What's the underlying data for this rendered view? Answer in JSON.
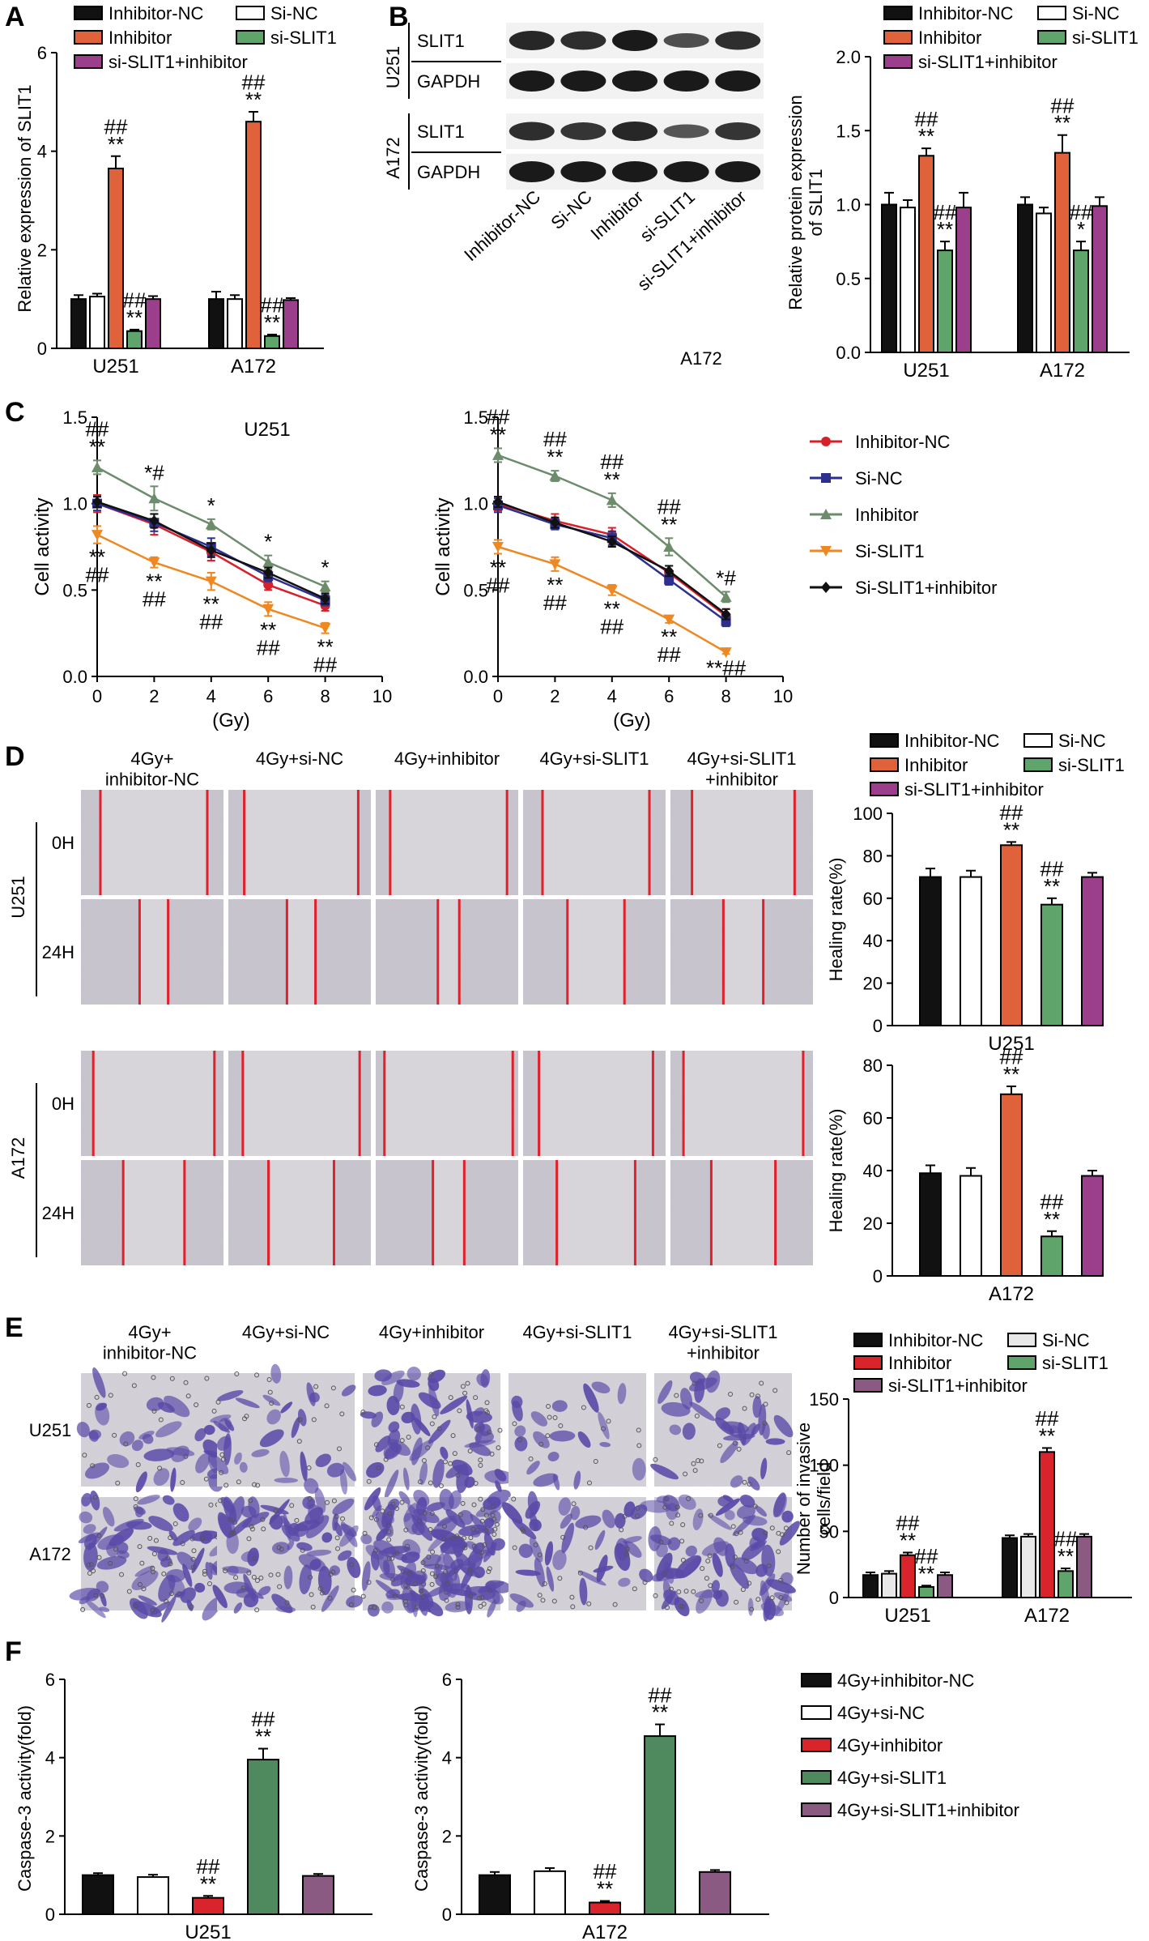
{
  "colors": {
    "black": "#111111",
    "white": "#ffffff",
    "orange": "#e0623a",
    "green": "#5fa46b",
    "purple": "#9b3f8c",
    "red": "#d9242b",
    "seaGreen": "#4f8a5f",
    "mauve": "#8a5a83",
    "lineRed": "#d7202a",
    "lineBlue": "#2d2f8e",
    "lineGray": "#6c8c6c",
    "lineOrange": "#ee8822",
    "lineBlack": "#111111",
    "woundRed": "#e0202a",
    "stain": "#5a4aa8"
  },
  "panel_letters": [
    "A",
    "B",
    "C",
    "D",
    "E",
    "F"
  ],
  "panelA": {
    "ylabel": "Relative expression of  SLIT1",
    "legend": [
      "Inhibitor-NC",
      "Si-NC",
      "Inhibitor",
      "si-SLIT1",
      "si-SLIT1+inhibitor"
    ]
  },
  "panelB": {
    "blot": {
      "lanes": [
        "Inhibitor-NC",
        "Si-NC",
        "Inhibitor",
        "si-SLIT1",
        "si-SLIT1+inhibitor"
      ],
      "groups": [
        {
          "cell": "U251",
          "rows": [
            "SLIT1",
            "GAPDH"
          ]
        },
        {
          "cell": "A172",
          "rows": [
            "SLIT1",
            "GAPDH"
          ]
        }
      ],
      "caption": "A172"
    },
    "ylabel_line1": "Relative protein expression",
    "ylabel_line2": "of  SLIT1",
    "legend": [
      "Inhibitor-NC",
      "Si-NC",
      "Inhibitor",
      "si-SLIT1",
      "si-SLIT1+inhibitor"
    ]
  },
  "panelC": {
    "left_title": "U251",
    "ylabel": "Cell activity",
    "xlabel": "(Gy)",
    "legend": [
      "Inhibitor-NC",
      "Si-NC",
      "Inhibitor",
      "Si-SLIT1",
      "Si-SLIT1+inhibitor"
    ]
  },
  "panelD": {
    "columns": [
      "4Gy+\ninhibitor-NC",
      "4Gy+si-NC",
      "4Gy+inhibitor",
      "4Gy+si-SLIT1",
      "4Gy+si-SLIT1\n+inhibitor"
    ],
    "cells": [
      "U251",
      "A172"
    ],
    "times": [
      "0H",
      "24H"
    ],
    "ylabel": "Healing rate(%)",
    "legend": [
      "Inhibitor-NC",
      "Si-NC",
      "Inhibitor",
      "si-SLIT1",
      "si-SLIT1+inhibitor"
    ],
    "chart_titles": [
      "U251",
      "A172"
    ]
  },
  "panelE": {
    "columns": [
      "4Gy+\ninhibitor-NC",
      "4Gy+si-NC",
      "4Gy+inhibitor",
      "4Gy+si-SLIT1",
      "4Gy+si-SLIT1\n+inhibitor"
    ],
    "rows": [
      "U251",
      "A172"
    ],
    "ylabel_line1": "Number of invasive",
    "ylabel_line2": "cells/field",
    "legend": [
      "Inhibitor-NC",
      "Si-NC",
      "Inhibitor",
      "si-SLIT1",
      "si-SLIT1+inhibitor"
    ]
  },
  "panelF": {
    "ylabel": "Caspase-3 activity(fold)",
    "legend": [
      "4Gy+inhibitor-NC",
      "4Gy+si-NC",
      "4Gy+inhibitor",
      "4Gy+si-SLIT1",
      "4Gy+si-SLIT1+inhibitor"
    ],
    "chart_titles": [
      "U251",
      "A172"
    ]
  },
  "chart_data": [
    {
      "id": "A",
      "type": "bar",
      "categories": [
        "U251",
        "A172"
      ],
      "ylabel": "Relative expression of  SLIT1",
      "ylim": [
        0,
        6
      ],
      "yticks": [
        0,
        2,
        4,
        6
      ],
      "series": [
        {
          "name": "Inhibitor-NC",
          "values": [
            1.0,
            1.0
          ],
          "err": [
            0.08,
            0.15
          ]
        },
        {
          "name": "Si-NC",
          "values": [
            1.05,
            1.0
          ],
          "err": [
            0.06,
            0.08
          ]
        },
        {
          "name": "Inhibitor",
          "values": [
            3.65,
            4.6
          ],
          "err": [
            0.25,
            0.2
          ],
          "sig": [
            "##\n**",
            "##\n**"
          ]
        },
        {
          "name": "si-SLIT1",
          "values": [
            0.35,
            0.25
          ],
          "err": [
            0.03,
            0.03
          ],
          "sig": [
            "##\n**",
            "##\n**"
          ]
        },
        {
          "name": "si-SLIT1+inhibitor",
          "values": [
            1.0,
            0.98
          ],
          "err": [
            0.06,
            0.04
          ]
        }
      ]
    },
    {
      "id": "B",
      "type": "bar",
      "categories": [
        "U251",
        "A172"
      ],
      "ylim": [
        0,
        2.0
      ],
      "yticks": [
        0.0,
        0.5,
        1.0,
        1.5,
        2.0
      ],
      "series": [
        {
          "name": "Inhibitor-NC",
          "values": [
            1.0,
            1.0
          ],
          "err": [
            0.08,
            0.05
          ]
        },
        {
          "name": "Si-NC",
          "values": [
            0.98,
            0.94
          ],
          "err": [
            0.05,
            0.04
          ]
        },
        {
          "name": "Inhibitor",
          "values": [
            1.33,
            1.35
          ],
          "err": [
            0.05,
            0.12
          ],
          "sig": [
            "##\n**",
            "##\n**"
          ]
        },
        {
          "name": "si-SLIT1",
          "values": [
            0.69,
            0.69
          ],
          "err": [
            0.06,
            0.06
          ],
          "sig": [
            "##\n**",
            "##\n*"
          ]
        },
        {
          "name": "si-SLIT1+inhibitor",
          "values": [
            0.98,
            0.99
          ],
          "err": [
            0.1,
            0.06
          ]
        }
      ]
    },
    {
      "id": "C-left",
      "type": "line",
      "title": "U251",
      "xlabel": "(Gy)",
      "ylabel": "Cell activity",
      "x": [
        0,
        2,
        4,
        6,
        8
      ],
      "xlim": [
        0,
        10
      ],
      "ylim": [
        0,
        1.5
      ],
      "xticks": [
        0,
        2,
        4,
        6,
        8,
        10
      ],
      "yticks": [
        0.0,
        0.5,
        1.0,
        1.5
      ],
      "series": [
        {
          "name": "Inhibitor-NC",
          "values": [
            1.0,
            0.88,
            0.72,
            0.53,
            0.41
          ],
          "err": [
            0.05,
            0.06,
            0.05,
            0.03,
            0.03
          ]
        },
        {
          "name": "Si-NC",
          "values": [
            1.0,
            0.89,
            0.75,
            0.58,
            0.44
          ],
          "err": [
            0.04,
            0.05,
            0.05,
            0.03,
            0.03
          ]
        },
        {
          "name": "Inhibitor",
          "values": [
            1.21,
            1.03,
            0.88,
            0.66,
            0.52
          ],
          "err": [
            0.04,
            0.07,
            0.03,
            0.04,
            0.03
          ],
          "sig": [
            "##\n**",
            "*#",
            "*",
            "*",
            "*"
          ]
        },
        {
          "name": "Si-SLIT1",
          "values": [
            0.82,
            0.66,
            0.55,
            0.39,
            0.28
          ],
          "err": [
            0.05,
            0.03,
            0.05,
            0.04,
            0.03
          ],
          "sig": [
            "**\n##",
            "**\n##",
            "**\n##",
            "**\n##",
            "**\n##"
          ]
        },
        {
          "name": "Si-SLIT1+inhibitor",
          "values": [
            1.01,
            0.9,
            0.73,
            0.6,
            0.45
          ],
          "err": [
            0.03,
            0.04,
            0.04,
            0.03,
            0.03
          ]
        }
      ]
    },
    {
      "id": "C-right",
      "type": "line",
      "xlabel": "(Gy)",
      "ylabel": "Cell activity",
      "x": [
        0,
        2,
        4,
        6,
        8
      ],
      "xlim": [
        0,
        10
      ],
      "ylim": [
        0,
        1.5
      ],
      "xticks": [
        0,
        2,
        4,
        6,
        8,
        10
      ],
      "yticks": [
        0.0,
        0.5,
        1.0,
        1.5
      ],
      "series": [
        {
          "name": "Inhibitor-NC",
          "values": [
            1.0,
            0.9,
            0.82,
            0.6,
            0.35
          ],
          "err": [
            0.04,
            0.04,
            0.04,
            0.04,
            0.04
          ]
        },
        {
          "name": "Si-NC",
          "values": [
            0.99,
            0.88,
            0.8,
            0.56,
            0.32
          ],
          "err": [
            0.04,
            0.03,
            0.04,
            0.03,
            0.03
          ]
        },
        {
          "name": "Inhibitor",
          "values": [
            1.28,
            1.16,
            1.02,
            0.75,
            0.46
          ],
          "err": [
            0.04,
            0.03,
            0.04,
            0.05,
            0.03
          ],
          "sig": [
            "##\n**",
            "##\n**",
            "##\n**",
            "##\n**",
            "*#"
          ]
        },
        {
          "name": "Si-SLIT1",
          "values": [
            0.75,
            0.65,
            0.5,
            0.33,
            0.14
          ],
          "err": [
            0.04,
            0.04,
            0.03,
            0.02,
            0.01
          ],
          "sig": [
            "**\n##",
            "**\n##",
            "**\n##",
            "**\n##",
            "**##"
          ]
        },
        {
          "name": "Si-SLIT1+inhibitor",
          "values": [
            1.01,
            0.89,
            0.78,
            0.61,
            0.36
          ],
          "err": [
            0.03,
            0.03,
            0.03,
            0.03,
            0.03
          ]
        }
      ]
    },
    {
      "id": "D-U251",
      "type": "bar",
      "categories": [
        "U251"
      ],
      "ylabel": "Healing rate(%)",
      "ylim": [
        0,
        100
      ],
      "yticks": [
        0,
        20,
        40,
        60,
        80,
        100
      ],
      "series": [
        {
          "name": "Inhibitor-NC",
          "values": [
            70
          ],
          "err": [
            4
          ]
        },
        {
          "name": "Si-NC",
          "values": [
            70
          ],
          "err": [
            3
          ]
        },
        {
          "name": "Inhibitor",
          "values": [
            85
          ],
          "err": [
            1.5
          ],
          "sig": [
            "##\n**"
          ]
        },
        {
          "name": "si-SLIT1",
          "values": [
            57
          ],
          "err": [
            3
          ],
          "sig": [
            "##\n**"
          ]
        },
        {
          "name": "si-SLIT1+inhibitor",
          "values": [
            70
          ],
          "err": [
            2
          ]
        }
      ]
    },
    {
      "id": "D-A172",
      "type": "bar",
      "categories": [
        "A172"
      ],
      "ylabel": "Healing rate(%)",
      "ylim": [
        0,
        80
      ],
      "yticks": [
        0,
        20,
        40,
        60,
        80
      ],
      "series": [
        {
          "name": "Inhibitor-NC",
          "values": [
            39
          ],
          "err": [
            3
          ]
        },
        {
          "name": "Si-NC",
          "values": [
            38
          ],
          "err": [
            3
          ]
        },
        {
          "name": "Inhibitor",
          "values": [
            69
          ],
          "err": [
            3
          ],
          "sig": [
            "##\n**"
          ]
        },
        {
          "name": "si-SLIT1",
          "values": [
            15
          ],
          "err": [
            2
          ],
          "sig": [
            "##\n**"
          ]
        },
        {
          "name": "si-SLIT1+inhibitor",
          "values": [
            38
          ],
          "err": [
            2
          ]
        }
      ]
    },
    {
      "id": "E",
      "type": "bar",
      "categories": [
        "U251",
        "A172"
      ],
      "ylim": [
        0,
        150
      ],
      "yticks": [
        0,
        50,
        100,
        150
      ],
      "series": [
        {
          "name": "Inhibitor-NC",
          "values": [
            17,
            45
          ],
          "err": [
            2,
            2
          ]
        },
        {
          "name": "Si-NC",
          "values": [
            18,
            46
          ],
          "err": [
            2,
            2
          ]
        },
        {
          "name": "Inhibitor",
          "values": [
            32,
            110
          ],
          "err": [
            2,
            3
          ],
          "sig": [
            "##\n**",
            "##\n**"
          ]
        },
        {
          "name": "si-SLIT1",
          "values": [
            8,
            20
          ],
          "err": [
            1,
            2
          ],
          "sig": [
            "##\n**",
            "##\n**"
          ]
        },
        {
          "name": "si-SLIT1+inhibitor",
          "values": [
            17,
            46
          ],
          "err": [
            2,
            2
          ]
        }
      ]
    },
    {
      "id": "F-U251",
      "type": "bar",
      "categories": [
        "U251"
      ],
      "ylabel": "Caspase-3 activity(fold)",
      "ylim": [
        0,
        6
      ],
      "yticks": [
        0,
        2,
        4,
        6
      ],
      "series": [
        {
          "name": "4Gy+inhibitor-NC",
          "values": [
            1.0
          ],
          "err": [
            0.05
          ]
        },
        {
          "name": "4Gy+si-NC",
          "values": [
            0.95
          ],
          "err": [
            0.06
          ]
        },
        {
          "name": "4Gy+inhibitor",
          "values": [
            0.42
          ],
          "err": [
            0.05
          ],
          "sig": [
            "##\n**"
          ]
        },
        {
          "name": "4Gy+si-SLIT1",
          "values": [
            3.95
          ],
          "err": [
            0.28
          ],
          "sig": [
            "##\n**"
          ]
        },
        {
          "name": "4Gy+si-SLIT1+inhibitor",
          "values": [
            0.98
          ],
          "err": [
            0.05
          ]
        }
      ]
    },
    {
      "id": "F-A172",
      "type": "bar",
      "categories": [
        "A172"
      ],
      "ylabel": "Caspase-3 activity(fold)",
      "ylim": [
        0,
        6
      ],
      "yticks": [
        0,
        2,
        4,
        6
      ],
      "series": [
        {
          "name": "4Gy+inhibitor-NC",
          "values": [
            1.0
          ],
          "err": [
            0.08
          ]
        },
        {
          "name": "4Gy+si-NC",
          "values": [
            1.1
          ],
          "err": [
            0.08
          ]
        },
        {
          "name": "4Gy+inhibitor",
          "values": [
            0.3
          ],
          "err": [
            0.04
          ],
          "sig": [
            "##\n**"
          ]
        },
        {
          "name": "4Gy+si-SLIT1",
          "values": [
            4.55
          ],
          "err": [
            0.3
          ],
          "sig": [
            "##\n**"
          ]
        },
        {
          "name": "4Gy+si-SLIT1+inhibitor",
          "values": [
            1.08
          ],
          "err": [
            0.05
          ]
        }
      ]
    }
  ]
}
